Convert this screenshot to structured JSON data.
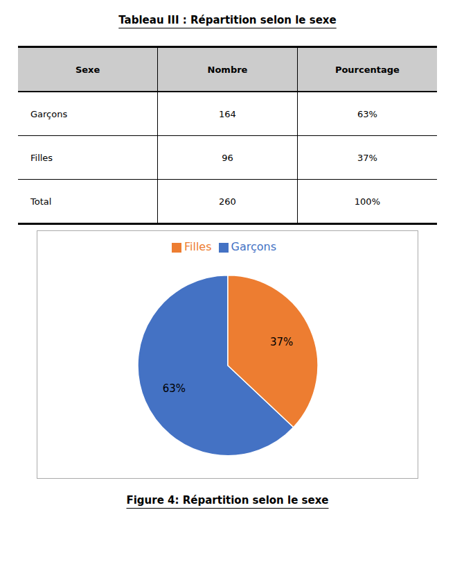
{
  "chart_data": [
    {
      "type": "table",
      "title": "Tableau III : Répartition selon le sexe",
      "columns": [
        "Sexe",
        "Nombre",
        "Pourcentage"
      ],
      "rows": [
        [
          "Garçons",
          "164",
          "63%"
        ],
        [
          "Filles",
          "96",
          "37%"
        ],
        [
          "Total",
          "260",
          "100%"
        ]
      ]
    },
    {
      "type": "pie",
      "title": "Figure 4: Répartition selon le sexe",
      "categories": [
        "Garçons",
        "Filles"
      ],
      "values": [
        63,
        37
      ],
      "value_labels": [
        "63%",
        "37%"
      ],
      "colors": [
        "#4472C4",
        "#ED7D31"
      ],
      "data_labels": true,
      "legend": "top"
    }
  ]
}
